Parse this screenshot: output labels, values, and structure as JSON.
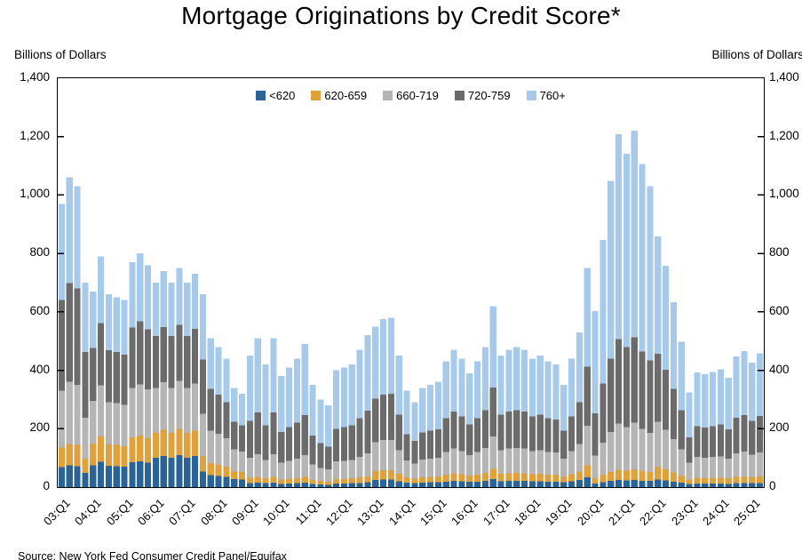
{
  "title": "Mortgage Originations by Credit Score*",
  "left_axis_label": "Billions of Dollars",
  "right_axis_label": "Billions of Dollars",
  "source": "Source: New York Fed Consumer Credit Panel/Equifax",
  "chart_data": {
    "type": "bar",
    "stacked": true,
    "title": "Mortgage Originations by Credit Score*",
    "ylabel": "Billions of Dollars",
    "ylim": [
      0,
      1400
    ],
    "ytick_values": [
      0,
      200,
      400,
      600,
      800,
      1000,
      1200,
      1400
    ],
    "ytick_labels": [
      "0",
      "200",
      "400",
      "600",
      "800",
      "1,000",
      "1,200",
      "1,400"
    ],
    "grid": false,
    "legend_position": "top-center",
    "xtick_every": 4,
    "categories": [
      "03:Q1",
      "03:Q2",
      "03:Q3",
      "03:Q4",
      "04:Q1",
      "04:Q2",
      "04:Q3",
      "04:Q4",
      "05:Q1",
      "05:Q2",
      "05:Q3",
      "05:Q4",
      "06:Q1",
      "06:Q2",
      "06:Q3",
      "06:Q4",
      "07:Q1",
      "07:Q2",
      "07:Q3",
      "07:Q4",
      "08:Q1",
      "08:Q2",
      "08:Q3",
      "08:Q4",
      "09:Q1",
      "09:Q2",
      "09:Q3",
      "09:Q4",
      "10:Q1",
      "10:Q2",
      "10:Q3",
      "10:Q4",
      "11:Q1",
      "11:Q2",
      "11:Q3",
      "11:Q4",
      "12:Q1",
      "12:Q2",
      "12:Q3",
      "12:Q4",
      "13:Q1",
      "13:Q2",
      "13:Q3",
      "13:Q4",
      "14:Q1",
      "14:Q2",
      "14:Q3",
      "14:Q4",
      "15:Q1",
      "15:Q2",
      "15:Q3",
      "15:Q4",
      "16:Q1",
      "16:Q2",
      "16:Q3",
      "16:Q4",
      "17:Q1",
      "17:Q2",
      "17:Q3",
      "17:Q4",
      "18:Q1",
      "18:Q2",
      "18:Q3",
      "18:Q4",
      "19:Q1",
      "19:Q2",
      "19:Q3",
      "19:Q4",
      "20:Q1",
      "20:Q2",
      "20:Q3",
      "20:Q4",
      "21:Q1",
      "21:Q2",
      "21:Q3",
      "21:Q4",
      "22:Q1",
      "22:Q2",
      "22:Q3",
      "22:Q4",
      "23:Q1",
      "23:Q2",
      "23:Q3",
      "23:Q4",
      "24:Q1",
      "24:Q2",
      "24:Q3",
      "24:Q4",
      "25:Q1",
      "25:Q2"
    ],
    "series": [
      {
        "name": "<620",
        "color": "#2a6496",
        "values": [
          68,
          74,
          72,
          49,
          74,
          87,
          73,
          72,
          70,
          85,
          88,
          84,
          101,
          107,
          101,
          109,
          101,
          106,
          53,
          41,
          38,
          35,
          27,
          26,
          14,
          15,
          13,
          15,
          11,
          12,
          13,
          15,
          11,
          9,
          8,
          12,
          12,
          13,
          14,
          16,
          25,
          26,
          26,
          20,
          15,
          13,
          15,
          16,
          16,
          19,
          21,
          20,
          18,
          19,
          22,
          28,
          20,
          21,
          22,
          21,
          20,
          20,
          19,
          19,
          16,
          20,
          24,
          34,
          12,
          17,
          21,
          24,
          23,
          24,
          22,
          21,
          26,
          23,
          19,
          15,
          10,
          12,
          12,
          12,
          12,
          11,
          13,
          14,
          13,
          14
        ]
      },
      {
        "name": "620-659",
        "color": "#dfa13b",
        "values": [
          68,
          74,
          72,
          49,
          74,
          87,
          73,
          72,
          70,
          85,
          88,
          84,
          84,
          89,
          84,
          90,
          84,
          88,
          53,
          41,
          38,
          35,
          27,
          26,
          18,
          20,
          17,
          20,
          15,
          16,
          18,
          20,
          14,
          12,
          11,
          16,
          16,
          17,
          19,
          21,
          30,
          32,
          32,
          25,
          18,
          16,
          19,
          19,
          20,
          24,
          26,
          24,
          21,
          24,
          26,
          34,
          25,
          26,
          26,
          26,
          24,
          25,
          24,
          23,
          19,
          24,
          29,
          41,
          18,
          25,
          31,
          36,
          34,
          37,
          33,
          31,
          43,
          38,
          32,
          25,
          16,
          20,
          19,
          20,
          20,
          19,
          22,
          23,
          21,
          23
        ]
      },
      {
        "name": "660-719",
        "color": "#b5b5b5",
        "values": [
          194,
          212,
          206,
          140,
          147,
          174,
          145,
          143,
          141,
          169,
          176,
          167,
          154,
          163,
          154,
          165,
          154,
          161,
          145,
          112,
          106,
          97,
          75,
          70,
          68,
          77,
          63,
          77,
          57,
          62,
          66,
          74,
          53,
          45,
          42,
          60,
          62,
          63,
          71,
          78,
          99,
          104,
          104,
          81,
          59,
          52,
          61,
          63,
          65,
          77,
          85,
          79,
          70,
          77,
          86,
          112,
          81,
          85,
          86,
          85,
          79,
          81,
          77,
          76,
          63,
          79,
          95,
          135,
          78,
          110,
          136,
          157,
          148,
          159,
          144,
          134,
          155,
          136,
          114,
          90,
          58,
          71,
          69,
          71,
          73,
          67,
          81,
          84,
          77,
          82
        ]
      },
      {
        "name": "720-759",
        "color": "#6b6b6b",
        "values": [
          310,
          339,
          330,
          224,
          181,
          213,
          178,
          175,
          173,
          208,
          216,
          205,
          179,
          189,
          179,
          191,
          179,
          186,
          185,
          143,
          134,
          123,
          95,
          90,
          126,
          143,
          118,
          143,
          106,
          115,
          123,
          137,
          98,
          84,
          78,
          112,
          115,
          118,
          132,
          146,
          149,
          155,
          157,
          122,
          89,
          78,
          92,
          95,
          97,
          116,
          127,
          119,
          105,
          116,
          130,
          167,
          122,
          127,
          130,
          127,
          119,
          122,
          116,
          113,
          95,
          119,
          143,
          203,
          144,
          203,
          252,
          290,
          274,
          293,
          265,
          247,
          232,
          205,
          171,
          134,
          87,
          106,
          104,
          106,
          109,
          101,
          121,
          126,
          115,
          124
        ]
      },
      {
        "name": "760+",
        "color": "#a7c9ea",
        "values": [
          330,
          361,
          350,
          238,
          194,
          229,
          191,
          188,
          186,
          223,
          232,
          220,
          182,
          192,
          182,
          195,
          182,
          189,
          224,
          173,
          164,
          150,
          116,
          108,
          224,
          255,
          209,
          255,
          191,
          205,
          220,
          244,
          174,
          150,
          141,
          200,
          205,
          209,
          234,
          259,
          247,
          258,
          261,
          202,
          149,
          131,
          153,
          157,
          162,
          194,
          211,
          198,
          176,
          194,
          216,
          279,
          202,
          211,
          216,
          211,
          198,
          202,
          194,
          189,
          157,
          198,
          239,
          337,
          350,
          491,
          609,
          701,
          663,
          707,
          642,
          597,
          403,
          356,
          297,
          234,
          153,
          184,
          182,
          185,
          189,
          176,
          211,
          218,
          200,
          215
        ]
      }
    ]
  }
}
